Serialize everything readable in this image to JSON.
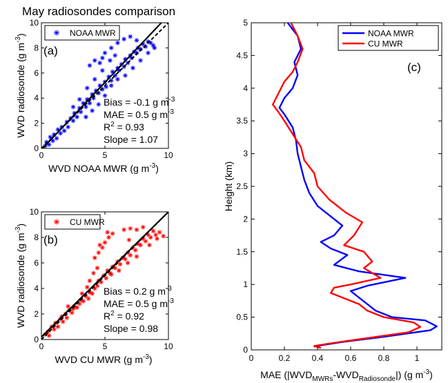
{
  "title": "May radiosondes comparison",
  "chart_data": [
    {
      "type": "scatter",
      "panel_label": "(a)",
      "xlabel": "WVD NOAA MWR",
      "xlabel_unit": "(g m",
      "xlabel_sup": "-3",
      "xlabel_close": ")",
      "ylabel": "WVD  radiosonde",
      "ylabel_unit": "(g m",
      "ylabel_sup": "-3",
      "ylabel_close": ")",
      "xlim": [
        0,
        10
      ],
      "ylim": [
        0,
        10
      ],
      "xticks": [
        "0",
        "5",
        "10"
      ],
      "yticks": [
        "0",
        "2",
        "4",
        "6",
        "8",
        "10"
      ],
      "legend": "NOAA MWR",
      "legend_position": "top-left",
      "color": "#0000ff",
      "marker": "asterisk",
      "stats": {
        "bias": "Bias = -0.1 g m",
        "bias_sup": "-3",
        "mae": "MAE = 0.5 g m",
        "mae_sup": "-3",
        "r2_prefix": "R",
        "r2_sup": "2",
        "r2_value": " = 0.93",
        "slope": "Slope = 1.07"
      },
      "fit_slope": 1.07,
      "fit_intercept": -0.1,
      "points": [
        [
          0.3,
          0.2
        ],
        [
          0.4,
          0.5
        ],
        [
          0.6,
          0.3
        ],
        [
          0.7,
          0.9
        ],
        [
          0.9,
          0.6
        ],
        [
          1.0,
          1.1
        ],
        [
          1.2,
          0.8
        ],
        [
          1.3,
          1.5
        ],
        [
          1.5,
          1.2
        ],
        [
          1.6,
          1.7
        ],
        [
          1.8,
          1.4
        ],
        [
          2.0,
          2.1
        ],
        [
          2.1,
          1.7
        ],
        [
          2.3,
          2.4
        ],
        [
          2.5,
          2.2
        ],
        [
          2.6,
          2.8
        ],
        [
          2.8,
          2.5
        ],
        [
          3.0,
          3.2
        ],
        [
          3.1,
          2.9
        ],
        [
          3.3,
          3.6
        ],
        [
          3.5,
          3.3
        ],
        [
          3.6,
          3.9
        ],
        [
          3.8,
          3.6
        ],
        [
          4.0,
          4.3
        ],
        [
          4.1,
          4.0
        ],
        [
          4.3,
          4.6
        ],
        [
          4.5,
          4.4
        ],
        [
          4.6,
          5.0
        ],
        [
          4.8,
          4.7
        ],
        [
          5.0,
          5.3
        ],
        [
          5.1,
          4.9
        ],
        [
          5.3,
          5.7
        ],
        [
          5.5,
          5.4
        ],
        [
          5.6,
          6.1
        ],
        [
          5.8,
          5.8
        ],
        [
          6.0,
          6.4
        ],
        [
          6.1,
          6.2
        ],
        [
          6.3,
          6.7
        ],
        [
          6.5,
          6.5
        ],
        [
          6.6,
          7.1
        ],
        [
          6.8,
          6.8
        ],
        [
          7.0,
          7.4
        ],
        [
          7.1,
          7.2
        ],
        [
          7.3,
          7.7
        ],
        [
          7.5,
          7.6
        ],
        [
          7.6,
          8.0
        ],
        [
          7.8,
          7.9
        ],
        [
          8.0,
          8.3
        ],
        [
          8.2,
          8.1
        ],
        [
          8.4,
          8.5
        ],
        [
          8.6,
          8.4
        ],
        [
          8.8,
          8.2
        ],
        [
          3.5,
          2.5
        ],
        [
          4.0,
          3.0
        ],
        [
          4.5,
          3.5
        ],
        [
          5.0,
          4.2
        ],
        [
          5.5,
          5.0
        ],
        [
          6.0,
          5.5
        ],
        [
          2.5,
          3.3
        ],
        [
          3.0,
          3.9
        ],
        [
          3.6,
          4.8
        ],
        [
          4.2,
          5.5
        ],
        [
          4.8,
          6.2
        ],
        [
          5.4,
          7.0
        ],
        [
          5.8,
          7.4
        ],
        [
          4.6,
          6.8
        ],
        [
          4.8,
          7.2
        ],
        [
          5.0,
          7.6
        ],
        [
          5.5,
          8.0
        ],
        [
          6.0,
          8.4
        ],
        [
          6.5,
          8.7
        ],
        [
          7.0,
          8.9
        ],
        [
          3.8,
          6.6
        ],
        [
          4.2,
          7.0
        ],
        [
          6.6,
          5.8
        ],
        [
          7.2,
          6.4
        ],
        [
          7.8,
          7.0
        ],
        [
          8.4,
          7.6
        ],
        [
          8.9,
          8.0
        ],
        [
          7.5,
          8.6
        ]
      ]
    },
    {
      "type": "scatter",
      "panel_label": "(b)",
      "xlabel": "WVD CU MWR",
      "xlabel_unit": "(g m",
      "xlabel_sup": "-3",
      "xlabel_close": ")",
      "ylabel": "WVD  radiosonde",
      "ylabel_unit": "(g m",
      "ylabel_sup": "-3",
      "ylabel_close": ")",
      "xlim": [
        0,
        10
      ],
      "ylim": [
        0,
        10
      ],
      "xticks": [
        "0",
        "5",
        "10"
      ],
      "yticks": [
        "0",
        "2",
        "4",
        "6",
        "8",
        "10"
      ],
      "legend": "CU MWR",
      "legend_position": "top-left",
      "color": "#ff0000",
      "marker": "asterisk",
      "stats": {
        "bias": "Bias = 0.2 g m",
        "bias_sup": "-3",
        "mae": "MAE = 0.5 g m",
        "mae_sup": "-3",
        "r2_prefix": "R",
        "r2_sup": "2",
        "r2_value": " = 0.92",
        "slope": "Slope = 0.98"
      },
      "fit_slope": 0.98,
      "fit_intercept": 0.2,
      "points": [
        [
          0.3,
          0.4
        ],
        [
          0.5,
          0.6
        ],
        [
          0.6,
          0.3
        ],
        [
          0.8,
          1.0
        ],
        [
          1.0,
          0.8
        ],
        [
          1.1,
          1.3
        ],
        [
          1.3,
          1.0
        ],
        [
          1.5,
          1.6
        ],
        [
          1.7,
          1.4
        ],
        [
          1.9,
          2.0
        ],
        [
          2.0,
          1.7
        ],
        [
          2.2,
          2.3
        ],
        [
          2.4,
          2.1
        ],
        [
          2.6,
          2.6
        ],
        [
          2.8,
          2.5
        ],
        [
          3.0,
          2.8
        ],
        [
          3.1,
          3.1
        ],
        [
          3.3,
          3.0
        ],
        [
          3.5,
          3.4
        ],
        [
          3.7,
          3.2
        ],
        [
          3.8,
          3.7
        ],
        [
          4.0,
          3.6
        ],
        [
          4.2,
          4.0
        ],
        [
          4.4,
          4.2
        ],
        [
          4.5,
          4.6
        ],
        [
          4.7,
          4.5
        ],
        [
          4.9,
          5.0
        ],
        [
          5.1,
          4.8
        ],
        [
          5.2,
          5.4
        ],
        [
          5.4,
          5.2
        ],
        [
          5.6,
          5.7
        ],
        [
          5.8,
          5.6
        ],
        [
          6.0,
          6.1
        ],
        [
          6.2,
          5.9
        ],
        [
          6.4,
          6.4
        ],
        [
          6.6,
          6.3
        ],
        [
          6.8,
          6.8
        ],
        [
          7.0,
          6.6
        ],
        [
          7.2,
          7.2
        ],
        [
          7.4,
          7.0
        ],
        [
          7.6,
          7.5
        ],
        [
          7.8,
          7.4
        ],
        [
          8.0,
          7.9
        ],
        [
          8.2,
          7.7
        ],
        [
          8.4,
          8.2
        ],
        [
          8.6,
          8.0
        ],
        [
          8.8,
          8.5
        ],
        [
          9.0,
          8.2
        ],
        [
          9.3,
          8.4
        ],
        [
          9.6,
          8.1
        ],
        [
          4.5,
          6.8
        ],
        [
          4.8,
          7.2
        ],
        [
          5.0,
          7.6
        ],
        [
          5.3,
          8.0
        ],
        [
          5.6,
          8.3
        ],
        [
          4.2,
          6.4
        ],
        [
          4.6,
          7.4
        ],
        [
          5.2,
          8.4
        ],
        [
          6.5,
          8.6
        ],
        [
          7.0,
          8.7
        ],
        [
          7.5,
          8.6
        ],
        [
          8.0,
          8.8
        ],
        [
          6.9,
          7.8
        ],
        [
          3.8,
          4.6
        ],
        [
          4.1,
          5.2
        ],
        [
          4.4,
          5.6
        ],
        [
          5.5,
          5.1
        ],
        [
          6.1,
          5.4
        ],
        [
          6.8,
          6.0
        ],
        [
          7.5,
          6.5
        ],
        [
          2.5,
          2.4
        ],
        [
          3.2,
          3.6
        ],
        [
          3.6,
          4.1
        ],
        [
          1.6,
          1.8
        ],
        [
          2.1,
          2.6
        ],
        [
          9.1,
          7.9
        ],
        [
          8.5,
          7.4
        ]
      ]
    },
    {
      "type": "line",
      "panel_label": "(c)",
      "xlabel": "MAE (|WVD",
      "xlabel_sub1": "MWRs",
      "xlabel_mid": "-WVD",
      "xlabel_sub2": "Radiosonde",
      "xlabel_unit": "|) (g m",
      "xlabel_sup": "-3",
      "xlabel_close": ")",
      "ylabel": "Height (km)",
      "xlim": [
        0,
        1.15
      ],
      "ylim": [
        0,
        5
      ],
      "xticks": [
        "0",
        "0.2",
        "0.4",
        "0.6",
        "0.8",
        "1"
      ],
      "yticks": [
        "0",
        "0.5",
        "1",
        "1.5",
        "2",
        "2.5",
        "3",
        "3.5",
        "4",
        "4.5",
        "5"
      ],
      "legend_position": "top-right",
      "series": [
        {
          "name": "NOAA MWR",
          "color": "#0000ff",
          "points": [
            [
              0.38,
              0.05
            ],
            [
              0.42,
              0.07
            ],
            [
              0.55,
              0.12
            ],
            [
              0.8,
              0.2
            ],
            [
              1.08,
              0.3
            ],
            [
              1.12,
              0.36
            ],
            [
              1.05,
              0.45
            ],
            [
              0.85,
              0.5
            ],
            [
              0.75,
              0.6
            ],
            [
              0.7,
              0.7
            ],
            [
              0.65,
              0.8
            ],
            [
              0.6,
              0.9
            ],
            [
              0.7,
              0.98
            ],
            [
              0.93,
              1.1
            ],
            [
              0.65,
              1.2
            ],
            [
              0.5,
              1.3
            ],
            [
              0.58,
              1.45
            ],
            [
              0.48,
              1.55
            ],
            [
              0.42,
              1.65
            ],
            [
              0.5,
              1.75
            ],
            [
              0.55,
              1.9
            ],
            [
              0.5,
              2.0
            ],
            [
              0.4,
              2.2
            ],
            [
              0.35,
              2.4
            ],
            [
              0.32,
              2.6
            ],
            [
              0.3,
              2.8
            ],
            [
              0.28,
              3.0
            ],
            [
              0.27,
              3.2
            ],
            [
              0.25,
              3.4
            ],
            [
              0.2,
              3.6
            ],
            [
              0.17,
              3.7
            ],
            [
              0.2,
              3.85
            ],
            [
              0.25,
              4.0
            ],
            [
              0.28,
              4.2
            ],
            [
              0.26,
              4.4
            ],
            [
              0.3,
              4.6
            ],
            [
              0.28,
              4.8
            ],
            [
              0.22,
              5.0
            ]
          ]
        },
        {
          "name": "CU MWR",
          "color": "#ff0000",
          "points": [
            [
              0.42,
              0.03
            ],
            [
              0.38,
              0.06
            ],
            [
              0.48,
              0.1
            ],
            [
              0.7,
              0.18
            ],
            [
              0.95,
              0.27
            ],
            [
              1.02,
              0.35
            ],
            [
              0.98,
              0.42
            ],
            [
              0.8,
              0.5
            ],
            [
              0.7,
              0.6
            ],
            [
              0.65,
              0.7
            ],
            [
              0.55,
              0.8
            ],
            [
              0.48,
              0.87
            ],
            [
              0.5,
              0.95
            ],
            [
              0.6,
              1.0
            ],
            [
              0.78,
              1.1
            ],
            [
              0.68,
              1.25
            ],
            [
              0.73,
              1.35
            ],
            [
              0.68,
              1.5
            ],
            [
              0.56,
              1.6
            ],
            [
              0.62,
              1.75
            ],
            [
              0.67,
              1.95
            ],
            [
              0.57,
              2.1
            ],
            [
              0.47,
              2.3
            ],
            [
              0.4,
              2.5
            ],
            [
              0.38,
              2.7
            ],
            [
              0.32,
              2.9
            ],
            [
              0.3,
              3.1
            ],
            [
              0.25,
              3.3
            ],
            [
              0.2,
              3.5
            ],
            [
              0.16,
              3.65
            ],
            [
              0.13,
              3.75
            ],
            [
              0.16,
              3.9
            ],
            [
              0.2,
              4.1
            ],
            [
              0.25,
              4.25
            ],
            [
              0.28,
              4.4
            ],
            [
              0.31,
              4.6
            ],
            [
              0.28,
              4.8
            ],
            [
              0.24,
              5.0
            ]
          ]
        }
      ]
    }
  ]
}
